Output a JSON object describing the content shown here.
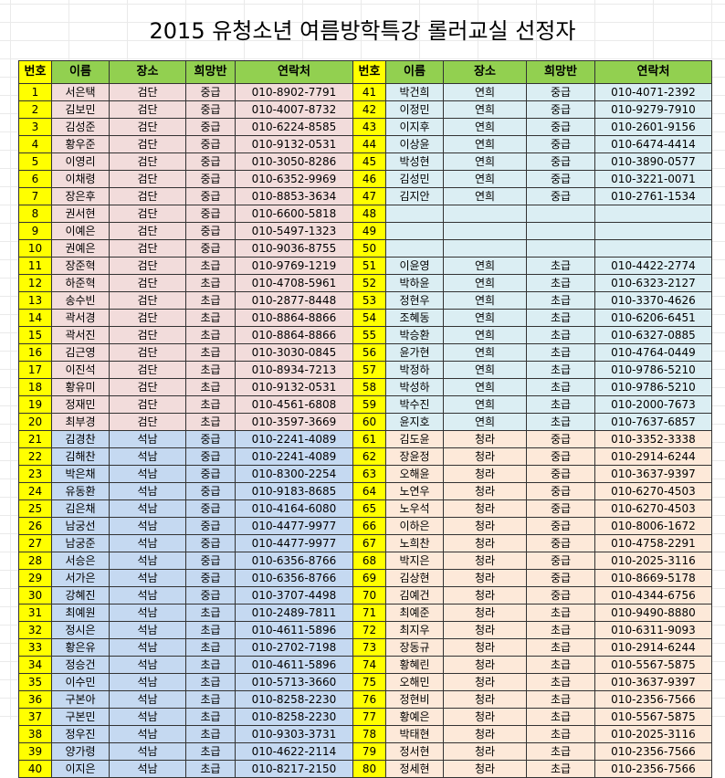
{
  "title": "2015 유청소년 여름방학특강 롤러교실 선정자",
  "headers": [
    "번호",
    "이름",
    "장소",
    "희망반",
    "연락처",
    "번호",
    "이름",
    "장소",
    "희망반",
    "연락처"
  ],
  "colors": {
    "header_green": "#92d050",
    "number_yellow": "#ffff00",
    "pink": "#f2dcdb",
    "blue": "#c5d9f1",
    "light_blue": "#dbeef3",
    "peach": "#fde9d9"
  },
  "rows": [
    {
      "left": [
        "1",
        "서은택",
        "검단",
        "중급",
        "010-8902-7791"
      ],
      "right": [
        "41",
        "박건희",
        "연희",
        "중급",
        "010-4071-2392"
      ],
      "lc": "pink",
      "rc": "lblue"
    },
    {
      "left": [
        "2",
        "김보민",
        "검단",
        "중급",
        "010-4007-8732"
      ],
      "right": [
        "42",
        "이정민",
        "연희",
        "중급",
        "010-9279-7910"
      ],
      "lc": "pink",
      "rc": "lblue"
    },
    {
      "left": [
        "3",
        "김성준",
        "검단",
        "중급",
        "010-6224-8585"
      ],
      "right": [
        "43",
        "이지후",
        "연희",
        "중급",
        "010-2601-9156"
      ],
      "lc": "pink",
      "rc": "lblue"
    },
    {
      "left": [
        "4",
        "황우준",
        "검단",
        "중급",
        "010-9132-0531"
      ],
      "right": [
        "44",
        "이상윤",
        "연희",
        "중급",
        "010-6474-4414"
      ],
      "lc": "pink",
      "rc": "lblue"
    },
    {
      "left": [
        "5",
        "이영리",
        "검단",
        "중급",
        "010-3050-8286"
      ],
      "right": [
        "45",
        "박성현",
        "연희",
        "중급",
        "010-3890-0577"
      ],
      "lc": "pink",
      "rc": "lblue"
    },
    {
      "left": [
        "6",
        "이채령",
        "검단",
        "중급",
        "010-6352-9969"
      ],
      "right": [
        "46",
        "김성민",
        "연희",
        "중급",
        "010-3221-0071"
      ],
      "lc": "pink",
      "rc": "lblue"
    },
    {
      "left": [
        "7",
        "장은후",
        "검단",
        "중급",
        "010-8853-3634"
      ],
      "right": [
        "47",
        "김지안",
        "연희",
        "중급",
        "010-2761-1534"
      ],
      "lc": "pink",
      "rc": "lblue"
    },
    {
      "left": [
        "8",
        "권서현",
        "검단",
        "중급",
        "010-6600-5818"
      ],
      "right": [
        "48",
        "",
        "",
        "",
        ""
      ],
      "lc": "pink",
      "rc": "empty"
    },
    {
      "left": [
        "9",
        "이예은",
        "검단",
        "중급",
        "010-5497-1323"
      ],
      "right": [
        "49",
        "",
        "",
        "",
        ""
      ],
      "lc": "pink",
      "rc": "empty"
    },
    {
      "left": [
        "10",
        "권예은",
        "검단",
        "중급",
        "010-9036-8755"
      ],
      "right": [
        "50",
        "",
        "",
        "",
        ""
      ],
      "lc": "pink",
      "rc": "empty"
    },
    {
      "left": [
        "11",
        "장준혁",
        "검단",
        "초급",
        "010-9769-1219"
      ],
      "right": [
        "51",
        "이윤영",
        "연희",
        "초급",
        "010-4422-2774"
      ],
      "lc": "pink",
      "rc": "lblue"
    },
    {
      "left": [
        "12",
        "하준혁",
        "검단",
        "초급",
        "010-4708-5961"
      ],
      "right": [
        "52",
        "박하윤",
        "연희",
        "초급",
        "010-6323-2127"
      ],
      "lc": "pink",
      "rc": "lblue"
    },
    {
      "left": [
        "13",
        "송수빈",
        "검단",
        "초급",
        "010-2877-8448"
      ],
      "right": [
        "53",
        "정현우",
        "연희",
        "초급",
        "010-3370-4626"
      ],
      "lc": "pink",
      "rc": "lblue"
    },
    {
      "left": [
        "14",
        "곽서경",
        "검단",
        "초급",
        "010-8864-8866"
      ],
      "right": [
        "54",
        "조혜동",
        "연희",
        "초급",
        "010-6206-6451"
      ],
      "lc": "pink",
      "rc": "lblue"
    },
    {
      "left": [
        "15",
        "곽서진",
        "검단",
        "초급",
        "010-8864-8866"
      ],
      "right": [
        "55",
        "박승환",
        "연희",
        "초급",
        "010-6327-0885"
      ],
      "lc": "pink",
      "rc": "lblue"
    },
    {
      "left": [
        "16",
        "김근영",
        "검단",
        "초급",
        "010-3030-0845"
      ],
      "right": [
        "56",
        "윤가현",
        "연희",
        "초급",
        "010-4764-0449"
      ],
      "lc": "pink",
      "rc": "lblue"
    },
    {
      "left": [
        "17",
        "이진석",
        "검단",
        "초급",
        "010-8934-7213"
      ],
      "right": [
        "57",
        "박정하",
        "연희",
        "초급",
        "010-9786-5210"
      ],
      "lc": "pink",
      "rc": "lblue"
    },
    {
      "left": [
        "18",
        "황유미",
        "검단",
        "초급",
        "010-9132-0531"
      ],
      "right": [
        "58",
        "박성하",
        "연희",
        "초급",
        "010-9786-5210"
      ],
      "lc": "pink",
      "rc": "lblue"
    },
    {
      "left": [
        "19",
        "정재민",
        "검단",
        "초급",
        "010-4561-6808"
      ],
      "right": [
        "59",
        "박수진",
        "연희",
        "초급",
        "010-2000-7673"
      ],
      "lc": "pink",
      "rc": "lblue"
    },
    {
      "left": [
        "20",
        "최부경",
        "검단",
        "초급",
        "010-3597-3669"
      ],
      "right": [
        "60",
        "윤지호",
        "연희",
        "초급",
        "010-7637-6857"
      ],
      "lc": "pink",
      "rc": "lblue"
    },
    {
      "left": [
        "21",
        "김경찬",
        "석남",
        "중급",
        "010-2241-4089"
      ],
      "right": [
        "61",
        "김도윤",
        "청라",
        "중급",
        "010-3352-3338"
      ],
      "lc": "blue",
      "rc": "peach"
    },
    {
      "left": [
        "22",
        "김해찬",
        "석남",
        "중급",
        "010-2241-4089"
      ],
      "right": [
        "62",
        "장윤정",
        "청라",
        "중급",
        "010-2914-6244"
      ],
      "lc": "blue",
      "rc": "peach"
    },
    {
      "left": [
        "23",
        "박은채",
        "석남",
        "중급",
        "010-8300-2254"
      ],
      "right": [
        "63",
        "오해윤",
        "청라",
        "중급",
        "010-3637-9397"
      ],
      "lc": "blue",
      "rc": "peach"
    },
    {
      "left": [
        "24",
        "유동환",
        "석남",
        "중급",
        "010-9183-8685"
      ],
      "right": [
        "64",
        "노연우",
        "청라",
        "중급",
        "010-6270-4503"
      ],
      "lc": "blue",
      "rc": "peach"
    },
    {
      "left": [
        "25",
        "김은채",
        "석남",
        "중급",
        "010-4164-6080"
      ],
      "right": [
        "65",
        "노우석",
        "청라",
        "중급",
        "010-6270-4503"
      ],
      "lc": "blue",
      "rc": "peach"
    },
    {
      "left": [
        "26",
        "남궁선",
        "석남",
        "중급",
        "010-4477-9977"
      ],
      "right": [
        "66",
        "이하은",
        "청라",
        "중급",
        "010-8006-1672"
      ],
      "lc": "blue",
      "rc": "peach"
    },
    {
      "left": [
        "27",
        "남궁준",
        "석남",
        "중급",
        "010-4477-9977"
      ],
      "right": [
        "67",
        "노희찬",
        "청라",
        "중급",
        "010-4758-2291"
      ],
      "lc": "blue",
      "rc": "peach"
    },
    {
      "left": [
        "28",
        "서승은",
        "석남",
        "중급",
        "010-6356-8766"
      ],
      "right": [
        "68",
        "박지은",
        "청라",
        "중급",
        "010-2025-3116"
      ],
      "lc": "blue",
      "rc": "peach"
    },
    {
      "left": [
        "29",
        "서가은",
        "석남",
        "중급",
        "010-6356-8766"
      ],
      "right": [
        "69",
        "김상현",
        "청라",
        "중급",
        "010-8669-5178"
      ],
      "lc": "blue",
      "rc": "peach"
    },
    {
      "left": [
        "30",
        "강혜진",
        "석남",
        "중급",
        "010-3707-4498"
      ],
      "right": [
        "70",
        "김예건",
        "청라",
        "중급",
        "010-4344-6756"
      ],
      "lc": "blue",
      "rc": "peach"
    },
    {
      "left": [
        "31",
        "최예원",
        "석남",
        "초급",
        "010-2489-7811"
      ],
      "right": [
        "71",
        "최예준",
        "청라",
        "초급",
        "010-9490-8880"
      ],
      "lc": "blue",
      "rc": "peach"
    },
    {
      "left": [
        "32",
        "정시은",
        "석남",
        "초급",
        "010-4611-5896"
      ],
      "right": [
        "72",
        "최지우",
        "청라",
        "초급",
        "010-6311-9093"
      ],
      "lc": "blue",
      "rc": "peach"
    },
    {
      "left": [
        "33",
        "황은유",
        "석남",
        "초급",
        "010-2702-7198"
      ],
      "right": [
        "73",
        "장동규",
        "청라",
        "초급",
        "010-2914-6244"
      ],
      "lc": "blue",
      "rc": "peach"
    },
    {
      "left": [
        "34",
        "정승건",
        "석남",
        "초급",
        "010-4611-5896"
      ],
      "right": [
        "74",
        "황혜린",
        "청라",
        "초급",
        "010-5567-5875"
      ],
      "lc": "blue",
      "rc": "peach"
    },
    {
      "left": [
        "35",
        "이수민",
        "석남",
        "초급",
        "010-5713-3660"
      ],
      "right": [
        "75",
        "오해민",
        "청라",
        "초급",
        "010-3637-9397"
      ],
      "lc": "blue",
      "rc": "peach"
    },
    {
      "left": [
        "36",
        "구본아",
        "석남",
        "초급",
        "010-8258-2230"
      ],
      "right": [
        "76",
        "정현비",
        "청라",
        "초급",
        "010-2356-7566"
      ],
      "lc": "blue",
      "rc": "peach"
    },
    {
      "left": [
        "37",
        "구본민",
        "석남",
        "초급",
        "010-8258-2230"
      ],
      "right": [
        "77",
        "황예은",
        "청라",
        "초급",
        "010-5567-5875"
      ],
      "lc": "blue",
      "rc": "peach"
    },
    {
      "left": [
        "38",
        "정우진",
        "석남",
        "초급",
        "010-9303-3731"
      ],
      "right": [
        "78",
        "박태현",
        "청라",
        "초급",
        "010-2025-3116"
      ],
      "lc": "blue",
      "rc": "peach"
    },
    {
      "left": [
        "39",
        "양가령",
        "석남",
        "초급",
        "010-4622-2114"
      ],
      "right": [
        "79",
        "정서현",
        "청라",
        "초급",
        "010-2356-7566"
      ],
      "lc": "blue",
      "rc": "peach"
    },
    {
      "left": [
        "40",
        "이지은",
        "석남",
        "초급",
        "010-8217-2150"
      ],
      "right": [
        "80",
        "정세현",
        "청라",
        "초급",
        "010-2356-7566"
      ],
      "lc": "blue",
      "rc": "peach"
    }
  ]
}
